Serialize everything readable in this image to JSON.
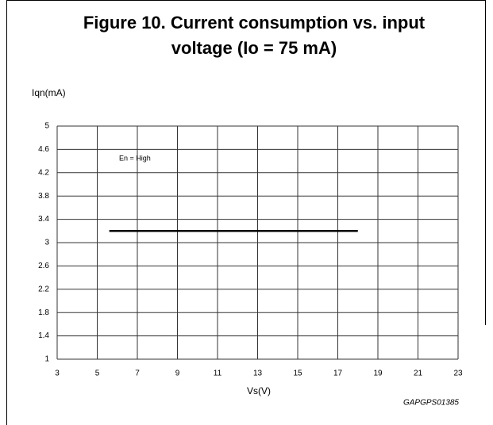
{
  "chart_data": {
    "type": "line",
    "title": "Figure 10. Current consumption vs. input",
    "subtitle": "voltage (Io = 75 mA)",
    "y_label": "Iqn(mA)",
    "x_label": "Vs(V)",
    "annotation": "En = High",
    "code": "GAPGPS01385",
    "x": [
      5.6,
      18
    ],
    "series": [
      {
        "name": "En = High",
        "color": "#000000",
        "values": [
          3.2,
          3.2
        ]
      }
    ],
    "xlim": [
      3,
      23
    ],
    "xticks": [
      3,
      5,
      7,
      9,
      11,
      13,
      15,
      17,
      19,
      21,
      23
    ],
    "ylim": [
      1,
      5
    ],
    "yticks": [
      1,
      1.4,
      1.8,
      2.2,
      2.6,
      3,
      3.4,
      3.8,
      4.2,
      4.6,
      5
    ],
    "grid": true
  }
}
